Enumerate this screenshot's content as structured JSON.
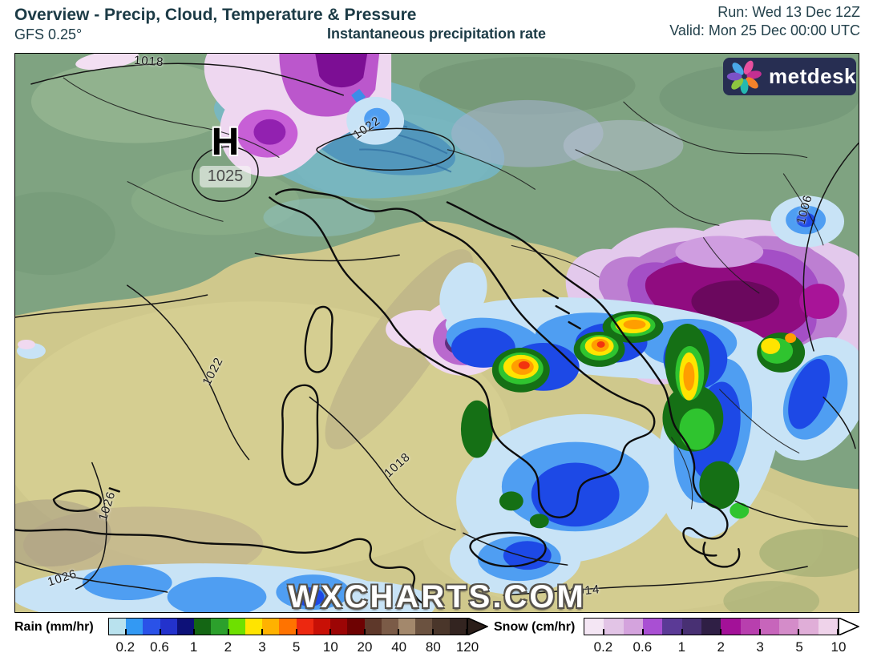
{
  "header": {
    "title": "Overview - Precip, Cloud, Temperature & Pressure",
    "model": "GFS 0.25°",
    "subtitle": "Instantaneous precipitation rate",
    "run": "Run: Wed 13 Dec 12Z",
    "valid": "Valid: Mon 25 Dec 00:00 UTC"
  },
  "map": {
    "watermark": "WXCHARTS.COM",
    "logo_text": "metdesk",
    "high": {
      "symbol": "H",
      "value": "1025"
    },
    "isobars": [
      "1018",
      "1022",
      "1022",
      "1018",
      "1026",
      "1026",
      "1014",
      "1006"
    ],
    "palette": {
      "land_north_green": "#7fa381",
      "land_south_khaki": "#cfc88c",
      "alps_cloud_teal": "#74b7c8",
      "snow_deep_magenta": "#8e0d80",
      "rain_pale_blue": "#c8e3f6"
    }
  },
  "legend": {
    "rain": {
      "label": "Rain (mm/hr)",
      "ticks": [
        "0.2",
        "0.6",
        "1",
        "2",
        "3",
        "5",
        "10",
        "20",
        "40",
        "80",
        "120"
      ],
      "colors": [
        "#b9e2ee",
        "#3399f3",
        "#2a52e8",
        "#2332cc",
        "#0d1178",
        "#146614",
        "#2ca02c",
        "#6ee000",
        "#ffe400",
        "#ffb200",
        "#ff7300",
        "#ed2810",
        "#c81006",
        "#9c0505",
        "#6e0202",
        "#5e382a",
        "#7b5b47",
        "#a3886c",
        "#6b5240",
        "#4a362a",
        "#332420"
      ],
      "arrow_color": "#2b1e19"
    },
    "snow": {
      "label": "Snow (cm/hr)",
      "ticks": [
        "0.2",
        "0.6",
        "1",
        "2",
        "3",
        "5",
        "10"
      ],
      "colors": [
        "#f4e6f4",
        "#e2c4e6",
        "#d4a3dd",
        "#a94fd3",
        "#5b3a96",
        "#483073",
        "#2f1f45",
        "#a31198",
        "#b83fae",
        "#c765bb",
        "#d48cc9",
        "#e0aed8",
        "#efd3ea"
      ],
      "arrow_color": "#ffffff"
    }
  }
}
